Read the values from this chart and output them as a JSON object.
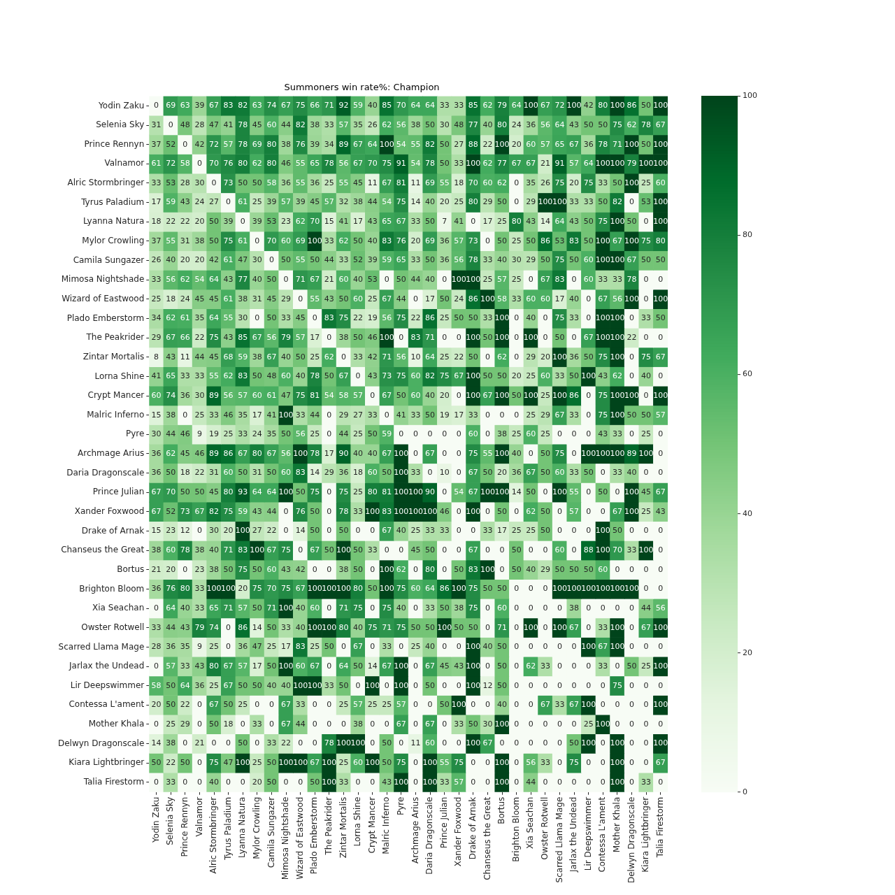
{
  "chart_data": {
    "type": "heatmap",
    "title": "Summoners win rate%: Champion",
    "categories": [
      "Yodin Zaku",
      "Selenia Sky",
      "Prince Rennyn",
      "Valnamor",
      "Alric Stormbringer",
      "Tyrus Paladium",
      "Lyanna Natura",
      "Mylor Crowling",
      "Camila Sungazer",
      "Mimosa Nightshade",
      "Wizard of Eastwood",
      "Plado Emberstorm",
      "The Peakrider",
      "Zintar Mortalis",
      "Lorna Shine",
      "Crypt Mancer",
      "Malric Inferno",
      "Pyre",
      "Archmage Arius",
      "Daria Dragonscale",
      "Prince Julian",
      "Xander Foxwood",
      "Drake of Arnak",
      "Chanseus the Great",
      "Bortus",
      "Brighton Bloom",
      "Xia Seachan",
      "Owster Rotwell",
      "Scarred Llama Mage",
      "Jarlax the Undead",
      "Lir Deepswimmer",
      "Contessa L'ament",
      "Mother Khala",
      "Delwyn Dragonscale",
      "Kiara Lightbringer",
      "Talia Firestorm"
    ],
    "y_categories": [
      "Yodin Zaku",
      "Selenia Sky",
      "Prince Rennyn",
      "Valnamor",
      "Alric Stormbringer",
      "Tyrus Paladium",
      "Lyanna Natura",
      "Mylor Crowling",
      "Camila Sungazer",
      "Mimosa Nightshade",
      "Wizard of Eastwood",
      "Plado Emberstorm",
      "The Peakrider",
      "Zintar Mortalis",
      "Lorna Shine",
      "Crypt Mancer",
      "Malric Inferno",
      "Pyre",
      "Archmage Arius",
      "Daria Dragonscale",
      "Prince Julian",
      "Xander Foxwood",
      "Drake of Arnak",
      "Chanseus the Great",
      "Bortus",
      "Brighton Bloom",
      "Xia Seachan",
      "Owster Rotwell",
      "Scarred Llama Mage",
      "Jarlax the Undead",
      "Lir Deepswimmer",
      "Contessa L'ament",
      "Mother Khala",
      "Delwyn Dragonscale",
      "Kiara Lightbringer",
      "Talia Firestorm"
    ],
    "cells": [
      [
        0,
        69,
        63,
        39,
        67,
        83,
        82,
        63,
        74,
        67,
        75,
        66,
        71,
        92,
        59,
        40,
        85,
        70,
        64,
        64,
        33,
        33,
        85,
        62,
        79,
        64,
        100,
        67,
        72,
        100,
        42,
        80,
        100,
        86,
        50,
        100
      ],
      [
        31,
        0,
        48,
        28,
        47,
        41,
        78,
        45,
        60,
        44,
        82,
        38,
        33,
        57,
        35,
        26,
        62,
        56,
        38,
        50,
        30,
        48,
        77,
        40,
        80,
        24,
        36,
        56,
        64,
        43,
        50,
        50,
        75,
        62,
        78,
        67
      ],
      [
        37,
        52,
        0,
        42,
        72,
        57,
        78,
        69,
        80,
        38,
        76,
        39,
        34,
        89,
        67,
        64,
        100,
        54,
        55,
        82,
        50,
        27,
        88,
        22,
        100,
        20,
        60,
        57,
        65,
        67,
        36,
        78,
        71,
        100,
        50,
        100
      ],
      [
        61,
        72,
        58,
        0,
        70,
        76,
        80,
        62,
        80,
        46,
        55,
        65,
        78,
        56,
        67,
        70,
        75,
        91,
        54,
        78,
        50,
        33,
        100,
        62,
        77,
        67,
        67,
        21,
        91,
        57,
        64,
        100,
        100,
        79,
        100,
        100
      ],
      [
        33,
        53,
        28,
        30,
        0,
        73,
        50,
        50,
        58,
        36,
        55,
        36,
        25,
        55,
        45,
        11,
        67,
        81,
        11,
        69,
        55,
        18,
        70,
        60,
        62,
        0,
        35,
        26,
        75,
        20,
        75,
        33,
        50,
        100,
        25,
        60
      ],
      [
        17,
        59,
        43,
        24,
        27,
        0,
        61,
        25,
        39,
        57,
        39,
        45,
        57,
        32,
        38,
        44,
        54,
        75,
        14,
        40,
        20,
        25,
        80,
        29,
        50,
        0,
        29,
        100,
        100,
        33,
        33,
        50,
        82,
        0,
        53,
        100
      ],
      [
        18,
        22,
        22,
        20,
        50,
        39,
        0,
        39,
        53,
        23,
        62,
        70,
        15,
        41,
        17,
        43,
        65,
        67,
        33,
        50,
        7,
        41,
        0,
        17,
        25,
        80,
        43,
        14,
        64,
        43,
        50,
        75,
        100,
        50,
        0,
        100
      ],
      [
        37,
        55,
        31,
        38,
        50,
        75,
        61,
        0,
        70,
        60,
        69,
        100,
        33,
        62,
        50,
        40,
        83,
        76,
        20,
        69,
        36,
        57,
        73,
        0,
        50,
        25,
        50,
        86,
        53,
        83,
        50,
        100,
        67,
        100,
        75,
        80
      ],
      [
        26,
        40,
        20,
        20,
        42,
        61,
        47,
        30,
        0,
        50,
        55,
        50,
        44,
        33,
        52,
        39,
        59,
        65,
        33,
        50,
        36,
        56,
        78,
        33,
        40,
        30,
        29,
        50,
        75,
        50,
        60,
        100,
        100,
        67,
        50,
        50
      ],
      [
        33,
        56,
        62,
        54,
        64,
        43,
        77,
        40,
        50,
        0,
        71,
        67,
        21,
        60,
        40,
        53,
        0,
        50,
        44,
        40,
        0,
        100,
        100,
        25,
        57,
        25,
        0,
        67,
        83,
        0,
        60,
        33,
        33,
        78,
        0,
        0
      ],
      [
        25,
        18,
        24,
        45,
        45,
        61,
        38,
        31,
        45,
        29,
        0,
        55,
        43,
        50,
        60,
        25,
        67,
        44,
        0,
        17,
        50,
        24,
        86,
        100,
        58,
        33,
        60,
        60,
        17,
        40,
        0,
        67,
        56,
        100,
        0,
        100
      ],
      [
        34,
        62,
        61,
        35,
        64,
        55,
        30,
        0,
        50,
        33,
        45,
        0,
        83,
        75,
        22,
        19,
        56,
        75,
        22,
        86,
        25,
        50,
        50,
        33,
        100,
        0,
        40,
        0,
        75,
        33,
        0,
        100,
        100,
        0,
        33,
        50
      ],
      [
        29,
        67,
        66,
        22,
        75,
        43,
        85,
        67,
        56,
        79,
        57,
        17,
        0,
        38,
        50,
        46,
        100,
        0,
        83,
        71,
        0,
        0,
        100,
        50,
        100,
        0,
        100,
        0,
        50,
        0,
        67,
        100,
        100,
        22,
        0,
        0
      ],
      [
        8,
        43,
        11,
        44,
        45,
        68,
        59,
        38,
        67,
        40,
        50,
        25,
        62,
        0,
        33,
        42,
        71,
        56,
        10,
        64,
        25,
        22,
        50,
        0,
        62,
        0,
        29,
        20,
        100,
        36,
        50,
        75,
        100,
        0,
        75,
        67
      ],
      [
        41,
        65,
        33,
        33,
        55,
        62,
        83,
        50,
        48,
        60,
        40,
        78,
        50,
        67,
        0,
        43,
        73,
        75,
        60,
        82,
        75,
        67,
        100,
        50,
        50,
        20,
        25,
        60,
        33,
        50,
        100,
        43,
        62,
        0,
        40,
        0
      ],
      [
        60,
        74,
        36,
        30,
        89,
        56,
        57,
        60,
        61,
        47,
        75,
        81,
        54,
        58,
        57,
        0,
        67,
        50,
        60,
        40,
        20,
        0,
        100,
        67,
        100,
        50,
        100,
        25,
        100,
        86,
        0,
        75,
        100,
        100,
        0,
        100
      ],
      [
        15,
        38,
        0,
        25,
        33,
        46,
        35,
        17,
        41,
        100,
        33,
        44,
        0,
        29,
        27,
        33,
        0,
        41,
        33,
        50,
        19,
        17,
        33,
        0,
        0,
        0,
        25,
        29,
        67,
        33,
        0,
        75,
        100,
        50,
        50,
        57
      ],
      [
        30,
        44,
        46,
        9,
        19,
        25,
        33,
        24,
        35,
        50,
        56,
        25,
        0,
        44,
        25,
        50,
        59,
        0,
        0,
        0,
        0,
        0,
        60,
        0,
        38,
        25,
        60,
        25,
        0,
        0,
        0,
        43,
        33,
        0,
        25,
        0
      ],
      [
        36,
        62,
        45,
        46,
        89,
        86,
        67,
        80,
        67,
        56,
        100,
        78,
        17,
        90,
        40,
        40,
        67,
        100,
        0,
        67,
        0,
        0,
        75,
        55,
        100,
        40,
        0,
        50,
        75,
        0,
        100,
        100,
        100,
        89,
        100,
        0
      ],
      [
        36,
        50,
        18,
        22,
        31,
        60,
        50,
        31,
        50,
        60,
        83,
        14,
        29,
        36,
        18,
        60,
        50,
        100,
        33,
        0,
        10,
        0,
        67,
        50,
        20,
        36,
        67,
        50,
        60,
        33,
        50,
        0,
        33,
        40,
        0,
        0
      ],
      [
        67,
        70,
        50,
        50,
        45,
        80,
        93,
        64,
        64,
        100,
        50,
        75,
        0,
        75,
        25,
        80,
        81,
        100,
        100,
        90,
        0,
        54,
        67,
        100,
        100,
        14,
        50,
        0,
        100,
        55,
        0,
        50,
        0,
        100,
        45,
        67
      ],
      [
        67,
        52,
        73,
        67,
        82,
        75,
        59,
        43,
        44,
        0,
        76,
        50,
        0,
        78,
        33,
        100,
        83,
        100,
        100,
        100,
        46,
        0,
        100,
        0,
        50,
        0,
        62,
        50,
        0,
        57,
        0,
        0,
        67,
        100,
        25,
        43
      ],
      [
        15,
        23,
        12,
        0,
        30,
        20,
        100,
        27,
        22,
        0,
        14,
        50,
        0,
        50,
        0,
        0,
        67,
        40,
        25,
        33,
        33,
        0,
        0,
        33,
        17,
        25,
        25,
        50,
        0,
        0,
        0,
        100,
        50,
        0,
        0,
        0
      ],
      [
        38,
        60,
        78,
        38,
        40,
        71,
        83,
        100,
        67,
        75,
        0,
        67,
        50,
        100,
        50,
        33,
        0,
        0,
        45,
        50,
        0,
        0,
        67,
        0,
        0,
        50,
        0,
        0,
        60,
        0,
        88,
        100,
        70,
        33,
        100,
        0
      ],
      [
        21,
        20,
        0,
        23,
        38,
        50,
        75,
        50,
        60,
        43,
        42,
        0,
        0,
        38,
        50,
        0,
        100,
        62,
        0,
        80,
        0,
        50,
        83,
        100,
        0,
        50,
        40,
        29,
        50,
        50,
        50,
        60,
        0,
        0,
        0,
        0
      ],
      [
        36,
        76,
        80,
        33,
        100,
        100,
        20,
        75,
        70,
        75,
        67,
        100,
        100,
        100,
        80,
        50,
        100,
        75,
        60,
        64,
        86,
        100,
        75,
        50,
        50,
        0,
        0,
        0,
        100,
        100,
        100,
        100,
        100,
        100,
        0,
        0
      ],
      [
        0,
        64,
        40,
        33,
        65,
        71,
        57,
        50,
        71,
        100,
        40,
        60,
        0,
        71,
        75,
        0,
        75,
        40,
        0,
        33,
        50,
        38,
        75,
        0,
        60,
        0,
        0,
        0,
        0,
        38,
        0,
        0,
        0,
        0,
        44,
        56
      ],
      [
        33,
        44,
        43,
        79,
        74,
        0,
        86,
        14,
        50,
        33,
        40,
        100,
        100,
        80,
        40,
        75,
        71,
        75,
        50,
        50,
        100,
        50,
        50,
        0,
        71,
        0,
        100,
        0,
        100,
        67,
        0,
        33,
        100,
        0,
        67,
        100
      ],
      [
        28,
        36,
        35,
        9,
        25,
        0,
        36,
        47,
        25,
        17,
        83,
        25,
        50,
        0,
        67,
        0,
        33,
        0,
        25,
        40,
        0,
        0,
        100,
        40,
        50,
        0,
        0,
        0,
        0,
        0,
        100,
        67,
        100,
        0,
        0,
        0
      ],
      [
        0,
        57,
        33,
        43,
        80,
        67,
        57,
        17,
        50,
        100,
        60,
        67,
        0,
        64,
        50,
        14,
        67,
        100,
        0,
        67,
        45,
        43,
        100,
        0,
        50,
        0,
        62,
        33,
        0,
        0,
        0,
        33,
        0,
        50,
        25,
        100
      ],
      [
        58,
        50,
        64,
        36,
        25,
        67,
        50,
        50,
        40,
        40,
        100,
        100,
        33,
        50,
        0,
        100,
        0,
        100,
        0,
        50,
        0,
        0,
        100,
        12,
        50,
        0,
        0,
        0,
        0,
        0,
        0,
        0,
        75,
        0,
        0,
        0
      ],
      [
        20,
        50,
        22,
        0,
        67,
        50,
        25,
        0,
        0,
        67,
        33,
        0,
        0,
        25,
        57,
        25,
        25,
        57,
        0,
        0,
        50,
        100,
        0,
        0,
        40,
        0,
        0,
        67,
        33,
        67,
        100,
        0,
        0,
        0,
        0,
        100
      ],
      [
        0,
        25,
        29,
        0,
        50,
        18,
        0,
        33,
        0,
        67,
        44,
        0,
        0,
        0,
        38,
        0,
        0,
        67,
        0,
        67,
        0,
        33,
        50,
        30,
        100,
        0,
        0,
        0,
        0,
        0,
        25,
        100,
        0,
        0,
        0,
        0
      ],
      [
        14,
        38,
        0,
        21,
        0,
        0,
        50,
        0,
        33,
        22,
        0,
        0,
        78,
        100,
        100,
        0,
        50,
        0,
        11,
        60,
        0,
        0,
        100,
        67,
        0,
        0,
        0,
        0,
        0,
        50,
        100,
        0,
        100,
        0,
        0,
        100
      ],
      [
        50,
        22,
        50,
        0,
        75,
        47,
        100,
        25,
        50,
        100,
        100,
        67,
        100,
        25,
        60,
        100,
        50,
        75,
        0,
        100,
        55,
        75,
        0,
        0,
        100,
        0,
        56,
        33,
        0,
        75,
        0,
        0,
        100,
        0,
        0,
        67
      ],
      [
        0,
        33,
        0,
        0,
        40,
        0,
        0,
        20,
        50,
        0,
        0,
        50,
        100,
        33,
        0,
        0,
        43,
        100,
        0,
        100,
        33,
        57,
        0,
        0,
        100,
        0,
        44,
        0,
        0,
        0,
        0,
        0,
        100,
        0,
        33,
        0
      ]
    ],
    "clim": [
      0,
      100
    ],
    "cticks": [
      0,
      20,
      40,
      60,
      80,
      100
    ],
    "data_labels": true
  }
}
